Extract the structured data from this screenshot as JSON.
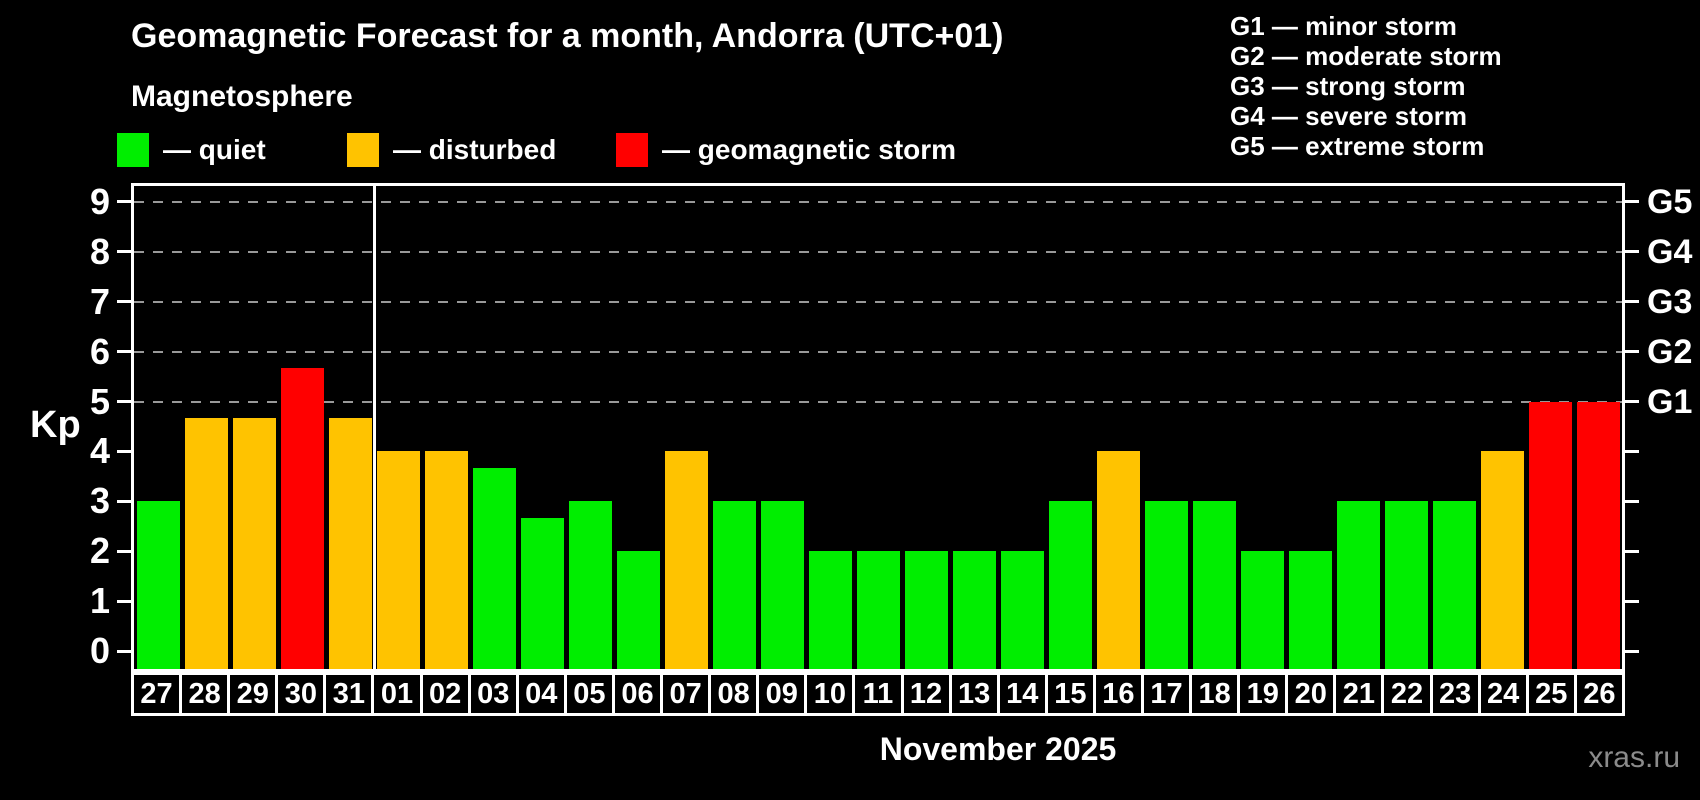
{
  "title": "Geomagnetic Forecast for a month, Andorra (UTC+01)",
  "subtitle": "Magnetosphere",
  "kp_legend": {
    "items": [
      {
        "label": "— quiet",
        "status": "quiet",
        "color": "#00ee00"
      },
      {
        "label": "— disturbed",
        "status": "disturbed",
        "color": "#ffc300"
      },
      {
        "label": "— geomagnetic storm",
        "status": "storm",
        "color": "#ff0000"
      }
    ]
  },
  "storm_legend": {
    "items": [
      {
        "text": "G1 — minor storm"
      },
      {
        "text": "G2 — moderate storm"
      },
      {
        "text": "G3 — strong storm"
      },
      {
        "text": "G4 — severe storm"
      },
      {
        "text": "G5 — extreme storm"
      }
    ]
  },
  "axis": {
    "y_label": "Kp",
    "y_ticks": [
      0,
      1,
      2,
      3,
      4,
      5,
      6,
      7,
      8,
      9
    ],
    "right_labels": [
      {
        "level": 5,
        "label": "G1"
      },
      {
        "level": 6,
        "label": "G2"
      },
      {
        "level": 7,
        "label": "G3"
      },
      {
        "level": 8,
        "label": "G4"
      },
      {
        "level": 9,
        "label": "G5"
      }
    ]
  },
  "x_axis_title": "November 2025",
  "watermark": "xras.ru",
  "colors": {
    "background": "#000000",
    "quiet": "#00ee00",
    "disturbed": "#ffc300",
    "storm": "#ff0000",
    "grid": "#999999",
    "axis": "#ffffff",
    "watermark": "#8b8b8b"
  },
  "chart_data": {
    "type": "bar",
    "title": "Geomagnetic Forecast for a month, Andorra (UTC+01)",
    "xlabel": "November 2025",
    "ylabel": "Kp",
    "ylim": [
      0,
      9
    ],
    "grid": "horizontal dashed lines at Kp 5-9 only (G1-G5 levels)",
    "legend_position": "top-left",
    "gridlines_at": [
      5,
      6,
      7,
      8,
      9
    ],
    "categories": [
      "27",
      "28",
      "29",
      "30",
      "31",
      "01",
      "02",
      "03",
      "04",
      "05",
      "06",
      "07",
      "08",
      "09",
      "10",
      "11",
      "12",
      "13",
      "14",
      "15",
      "16",
      "17",
      "18",
      "19",
      "20",
      "21",
      "22",
      "23",
      "24",
      "25",
      "26"
    ],
    "values": [
      3,
      4.67,
      4.67,
      5.67,
      4.67,
      4,
      4,
      3.67,
      2.67,
      3,
      2,
      4,
      3,
      3,
      2,
      2,
      2,
      2,
      2,
      3,
      4,
      3,
      3,
      2,
      2,
      3,
      3,
      3,
      4,
      5,
      5
    ],
    "statuses": [
      "quiet",
      "disturbed",
      "disturbed",
      "storm",
      "disturbed",
      "disturbed",
      "disturbed",
      "quiet",
      "quiet",
      "quiet",
      "quiet",
      "disturbed",
      "quiet",
      "quiet",
      "quiet",
      "quiet",
      "quiet",
      "quiet",
      "quiet",
      "quiet",
      "disturbed",
      "quiet",
      "quiet",
      "quiet",
      "quiet",
      "quiet",
      "quiet",
      "quiet",
      "disturbed",
      "storm",
      "storm"
    ],
    "month_separator_after_index": 4
  }
}
